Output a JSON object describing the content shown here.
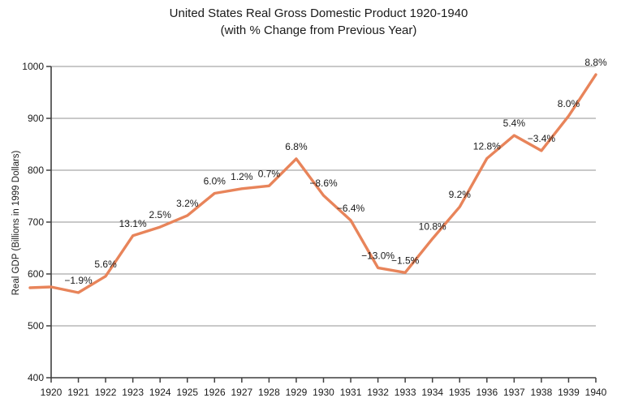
{
  "title": {
    "line1": "United States Real Gross Domestic Product 1920-1940",
    "line2": "(with % Change from Previous Year)"
  },
  "chart_data": {
    "type": "line",
    "title": "United States Real Gross Domestic Product 1920-1940",
    "subtitle": "(with % Change from Previous Year)",
    "xlabel": "",
    "ylabel": "Real GDP (Billions in 1999 Dollars)",
    "ylim": [
      400,
      1000
    ],
    "yticks": [
      400,
      500,
      600,
      700,
      800,
      900,
      1000
    ],
    "grid": "horizontal-only",
    "legend": "none",
    "line_color": "#E8845A",
    "axis_color": "#3f3f3f",
    "grid_color": "#a9a9a9",
    "label_color": "#1a1a1a",
    "categories": [
      1920,
      1921,
      1922,
      1923,
      1924,
      1925,
      1926,
      1927,
      1928,
      1929,
      1930,
      1931,
      1932,
      1933,
      1934,
      1935,
      1936,
      1937,
      1938,
      1939,
      1940
    ],
    "values": [
      575.0,
      564.1,
      595.7,
      673.7,
      690.5,
      712.6,
      755.4,
      764.4,
      769.8,
      822.1,
      751.4,
      703.3,
      611.9,
      602.7,
      667.8,
      729.3,
      822.6,
      867.0,
      837.6,
      904.6,
      984.2
    ],
    "pct_change_labels": [
      "",
      "−1.9%",
      "5.6%",
      "13.1%",
      "2.5%",
      "3.2%",
      "6.0%",
      "1.2%",
      "0.7%",
      "6.8%",
      "−8.6%",
      "−6.4%",
      "−13.0%",
      "−1.5%",
      "10.8%",
      "9.2%",
      "12.8%",
      "5.4%",
      "−3.4%",
      "8.0%",
      "8.8%"
    ]
  }
}
